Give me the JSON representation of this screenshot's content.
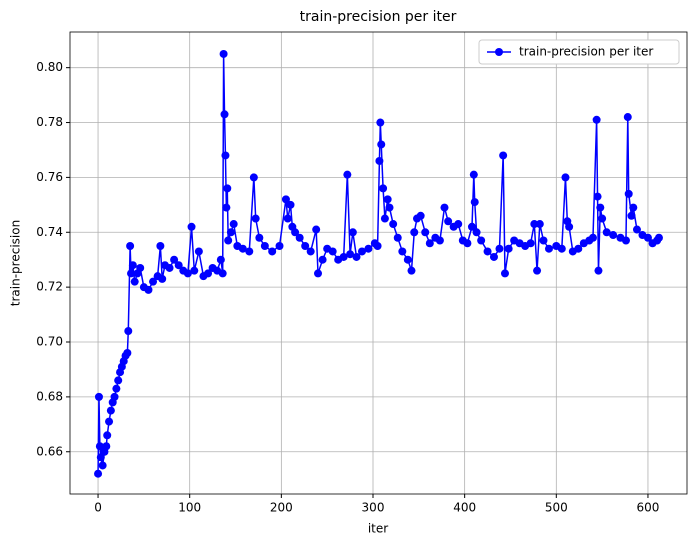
{
  "chart_data": {
    "type": "line",
    "title": "train-precision per iter",
    "x_label": "iter",
    "y_label": "train-precision",
    "xlim": [
      -30.6,
      642.6
    ],
    "ylim": [
      0.6446,
      0.813
    ],
    "xticks": [
      0,
      100,
      200,
      300,
      400,
      500,
      600
    ],
    "yticks": [
      0.66,
      0.68,
      {
        "value": 0.7,
        "label": "0.70"
      },
      0.72,
      0.74,
      0.76,
      0.78,
      {
        "value": 0.8,
        "label": "0.80"
      }
    ],
    "grid": true,
    "legend": "upper right",
    "x": [
      0,
      1,
      2,
      3,
      5,
      7,
      9,
      10,
      12,
      14,
      16,
      18,
      20,
      22,
      24,
      26,
      28,
      30,
      32,
      33,
      35,
      36,
      38,
      40,
      43,
      46,
      50,
      55,
      60,
      65,
      68,
      70,
      73,
      78,
      83,
      88,
      93,
      98,
      102,
      105,
      110,
      115,
      120,
      125,
      130,
      134,
      136,
      137,
      138,
      139,
      140,
      141,
      142,
      145,
      148,
      152,
      158,
      165,
      170,
      172,
      176,
      182,
      190,
      198,
      205,
      207,
      210,
      212,
      215,
      220,
      226,
      232,
      238,
      240,
      245,
      250,
      256,
      262,
      268,
      272,
      275,
      278,
      282,
      288,
      295,
      302,
      305,
      307,
      308,
      309,
      311,
      313,
      316,
      318,
      322,
      327,
      332,
      338,
      342,
      345,
      348,
      352,
      357,
      362,
      368,
      373,
      378,
      382,
      388,
      393,
      398,
      403,
      408,
      410,
      411,
      413,
      418,
      425,
      432,
      438,
      442,
      444,
      448,
      454,
      460,
      466,
      472,
      476,
      479,
      482,
      486,
      492,
      500,
      506,
      510,
      512,
      514,
      518,
      524,
      530,
      536,
      540,
      544,
      545,
      546,
      548,
      550,
      555,
      562,
      570,
      576,
      578,
      579,
      582,
      584,
      588,
      594,
      600,
      605,
      610,
      612
    ],
    "series": [
      {
        "name": "train-precision per iter",
        "color": "#0000ff",
        "values": [
          0.652,
          0.68,
          0.662,
          0.658,
          0.655,
          0.66,
          0.662,
          0.666,
          0.671,
          0.675,
          0.678,
          0.68,
          0.683,
          0.686,
          0.689,
          0.691,
          0.693,
          0.695,
          0.696,
          0.704,
          0.735,
          0.725,
          0.728,
          0.722,
          0.725,
          0.727,
          0.72,
          0.719,
          0.722,
          0.724,
          0.735,
          0.723,
          0.728,
          0.727,
          0.73,
          0.728,
          0.726,
          0.725,
          0.742,
          0.726,
          0.733,
          0.724,
          0.725,
          0.727,
          0.726,
          0.73,
          0.725,
          0.805,
          0.783,
          0.768,
          0.749,
          0.756,
          0.737,
          0.74,
          0.743,
          0.735,
          0.734,
          0.733,
          0.76,
          0.745,
          0.738,
          0.735,
          0.733,
          0.735,
          0.752,
          0.745,
          0.75,
          0.742,
          0.74,
          0.738,
          0.735,
          0.733,
          0.741,
          0.725,
          0.73,
          0.734,
          0.733,
          0.73,
          0.731,
          0.761,
          0.732,
          0.74,
          0.731,
          0.733,
          0.734,
          0.736,
          0.735,
          0.766,
          0.78,
          0.772,
          0.756,
          0.745,
          0.752,
          0.749,
          0.743,
          0.738,
          0.733,
          0.73,
          0.726,
          0.74,
          0.745,
          0.746,
          0.74,
          0.736,
          0.738,
          0.737,
          0.749,
          0.744,
          0.742,
          0.743,
          0.737,
          0.736,
          0.742,
          0.761,
          0.751,
          0.74,
          0.737,
          0.733,
          0.731,
          0.734,
          0.768,
          0.725,
          0.734,
          0.737,
          0.736,
          0.735,
          0.736,
          0.743,
          0.726,
          0.743,
          0.737,
          0.734,
          0.735,
          0.734,
          0.76,
          0.744,
          0.742,
          0.733,
          0.734,
          0.736,
          0.737,
          0.738,
          0.781,
          0.753,
          0.726,
          0.749,
          0.745,
          0.74,
          0.739,
          0.738,
          0.737,
          0.782,
          0.754,
          0.746,
          0.749,
          0.741,
          0.739,
          0.738,
          0.736,
          0.737,
          0.738
        ]
      }
    ]
  }
}
